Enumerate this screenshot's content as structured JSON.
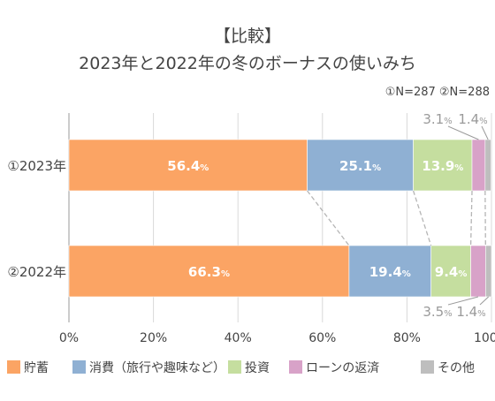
{
  "title": "【比較】",
  "subtitle": "2023年と2022年の冬のボーナスの使いみち",
  "note": "①N=287 ②N=288",
  "chart_data": {
    "type": "bar",
    "orientation": "horizontal",
    "stacked": true,
    "percent_stacked": true,
    "categories": [
      "①2023年",
      "②2022年"
    ],
    "series": [
      {
        "name": "貯蓄",
        "values": [
          56.4,
          66.3
        ],
        "color": "#FBA464"
      },
      {
        "name": "消費（旅行や趣味など）",
        "values": [
          25.1,
          19.4
        ],
        "color": "#8FB0D3"
      },
      {
        "name": "投資",
        "values": [
          13.9,
          9.4
        ],
        "color": "#C5DE9F"
      },
      {
        "name": "ローンの返済",
        "values": [
          3.1,
          3.5
        ],
        "color": "#D8A2C8"
      },
      {
        "name": "その他",
        "values": [
          1.4,
          1.4
        ],
        "color": "#BEBEBE"
      }
    ],
    "xlim": [
      0,
      100
    ],
    "xticks": [
      "0%",
      "20%",
      "40%",
      "60%",
      "80%",
      "100%"
    ],
    "grid": true,
    "legend_position": "bottom",
    "value_suffix": "%",
    "connector_lines": true
  }
}
